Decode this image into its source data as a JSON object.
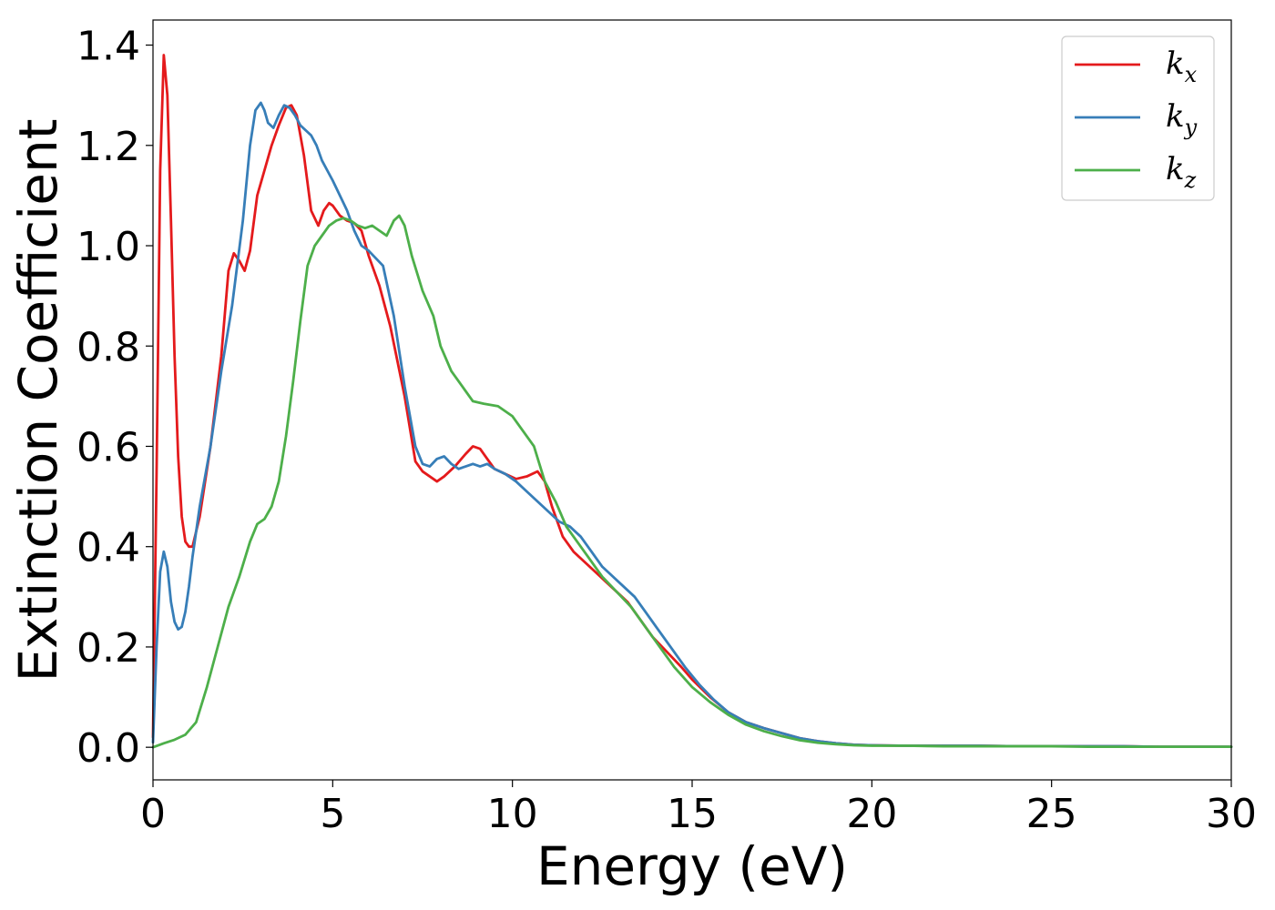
{
  "chart_data": {
    "type": "line",
    "title": "",
    "xlabel": "Energy (eV)",
    "ylabel": "Extinction Coefficient",
    "xlim": [
      0,
      30
    ],
    "ylim": [
      -0.065,
      1.45
    ],
    "xticks": [
      0,
      5,
      10,
      15,
      20,
      25,
      30
    ],
    "xtick_labels": [
      "0",
      "5",
      "10",
      "15",
      "20",
      "25",
      "30"
    ],
    "yticks": [
      0.0,
      0.2,
      0.4,
      0.6,
      0.8,
      1.0,
      1.2,
      1.4
    ],
    "ytick_labels": [
      "0.0",
      "0.2",
      "0.4",
      "0.6",
      "0.8",
      "1.0",
      "1.2",
      "1.4"
    ],
    "grid": false,
    "legend_position": "top-right",
    "series": [
      {
        "name": "k_x",
        "legend_base": "k",
        "legend_sub": "x",
        "color": "#e41a1c",
        "x": [
          0,
          0.1,
          0.2,
          0.3,
          0.4,
          0.5,
          0.6,
          0.7,
          0.8,
          0.9,
          1.0,
          1.1,
          1.3,
          1.6,
          1.9,
          2.1,
          2.25,
          2.4,
          2.55,
          2.7,
          2.9,
          3.1,
          3.3,
          3.5,
          3.7,
          3.85,
          4.0,
          4.2,
          4.4,
          4.6,
          4.75,
          4.9,
          5.0,
          5.2,
          5.4,
          5.6,
          5.8,
          6.0,
          6.3,
          6.6,
          7.0,
          7.3,
          7.5,
          7.7,
          7.9,
          8.1,
          8.4,
          8.7,
          8.9,
          9.1,
          9.3,
          9.5,
          9.8,
          10.1,
          10.4,
          10.7,
          10.9,
          11.1,
          11.4,
          11.7,
          12.0,
          12.3,
          12.6,
          12.9,
          13.2,
          13.5,
          13.9,
          14.3,
          14.7,
          15.0,
          15.5,
          16.0,
          16.5,
          17.0,
          17.5,
          18.0,
          18.5,
          19.0,
          19.5,
          20.0,
          21,
          22,
          23,
          24,
          25,
          26,
          27,
          28,
          29,
          30
        ],
        "y": [
          0.02,
          0.55,
          1.15,
          1.38,
          1.3,
          1.05,
          0.78,
          0.58,
          0.46,
          0.41,
          0.4,
          0.4,
          0.46,
          0.6,
          0.78,
          0.95,
          0.985,
          0.97,
          0.95,
          0.99,
          1.1,
          1.15,
          1.2,
          1.24,
          1.275,
          1.28,
          1.26,
          1.18,
          1.07,
          1.04,
          1.07,
          1.085,
          1.08,
          1.06,
          1.05,
          1.045,
          1.03,
          0.98,
          0.92,
          0.84,
          0.7,
          0.57,
          0.55,
          0.54,
          0.53,
          0.54,
          0.56,
          0.585,
          0.6,
          0.595,
          0.575,
          0.555,
          0.545,
          0.535,
          0.54,
          0.55,
          0.53,
          0.48,
          0.42,
          0.39,
          0.37,
          0.35,
          0.33,
          0.31,
          0.29,
          0.26,
          0.22,
          0.19,
          0.16,
          0.135,
          0.1,
          0.07,
          0.05,
          0.038,
          0.028,
          0.018,
          0.012,
          0.008,
          0.005,
          0.004,
          0.003,
          0.003,
          0.003,
          0.002,
          0.002,
          0.002,
          0.002,
          0.001,
          0.001,
          0.001
        ]
      },
      {
        "name": "k_y",
        "legend_base": "k",
        "legend_sub": "y",
        "color": "#377eb8",
        "x": [
          0,
          0.1,
          0.2,
          0.3,
          0.4,
          0.5,
          0.6,
          0.7,
          0.8,
          0.9,
          1.0,
          1.1,
          1.3,
          1.6,
          1.9,
          2.2,
          2.5,
          2.7,
          2.85,
          3.0,
          3.1,
          3.2,
          3.35,
          3.5,
          3.65,
          3.8,
          3.95,
          4.1,
          4.25,
          4.4,
          4.55,
          4.7,
          4.85,
          5.0,
          5.2,
          5.4,
          5.6,
          5.8,
          6.0,
          6.2,
          6.4,
          6.7,
          7.0,
          7.3,
          7.5,
          7.7,
          7.9,
          8.1,
          8.3,
          8.5,
          8.7,
          8.9,
          9.1,
          9.3,
          9.5,
          9.8,
          10.1,
          10.4,
          10.7,
          11.0,
          11.3,
          11.6,
          11.9,
          12.2,
          12.5,
          12.8,
          13.1,
          13.4,
          13.7,
          14.0,
          14.4,
          14.8,
          15.2,
          15.6,
          16.0,
          16.5,
          17.0,
          17.5,
          18.0,
          18.5,
          19.0,
          19.5,
          20.0,
          21,
          22,
          23,
          24,
          25,
          26,
          27,
          28,
          29,
          30
        ],
        "y": [
          0.01,
          0.2,
          0.35,
          0.39,
          0.36,
          0.29,
          0.25,
          0.235,
          0.24,
          0.27,
          0.32,
          0.38,
          0.48,
          0.6,
          0.75,
          0.88,
          1.05,
          1.2,
          1.27,
          1.285,
          1.27,
          1.245,
          1.235,
          1.26,
          1.28,
          1.275,
          1.26,
          1.24,
          1.23,
          1.22,
          1.2,
          1.17,
          1.15,
          1.13,
          1.1,
          1.07,
          1.03,
          1.0,
          0.99,
          0.975,
          0.96,
          0.86,
          0.72,
          0.6,
          0.565,
          0.56,
          0.575,
          0.58,
          0.565,
          0.555,
          0.56,
          0.565,
          0.56,
          0.565,
          0.555,
          0.545,
          0.53,
          0.51,
          0.49,
          0.47,
          0.45,
          0.44,
          0.42,
          0.39,
          0.36,
          0.34,
          0.32,
          0.3,
          0.27,
          0.24,
          0.2,
          0.16,
          0.125,
          0.095,
          0.07,
          0.05,
          0.038,
          0.028,
          0.018,
          0.012,
          0.008,
          0.005,
          0.004,
          0.003,
          0.003,
          0.003,
          0.002,
          0.002,
          0.002,
          0.002,
          0.001,
          0.001,
          0.001
        ]
      },
      {
        "name": "k_z",
        "legend_base": "k",
        "legend_sub": "z",
        "color": "#4daf4a",
        "x": [
          0,
          0.3,
          0.6,
          0.9,
          1.2,
          1.5,
          1.8,
          2.1,
          2.4,
          2.7,
          2.9,
          3.1,
          3.3,
          3.5,
          3.7,
          3.9,
          4.1,
          4.3,
          4.5,
          4.7,
          4.9,
          5.1,
          5.3,
          5.5,
          5.7,
          5.9,
          6.1,
          6.3,
          6.5,
          6.7,
          6.85,
          7.0,
          7.2,
          7.5,
          7.8,
          8.0,
          8.3,
          8.6,
          8.9,
          9.2,
          9.6,
          10.0,
          10.3,
          10.6,
          10.9,
          11.2,
          11.5,
          11.8,
          12.1,
          12.5,
          12.9,
          13.3,
          13.7,
          14.1,
          14.5,
          15.0,
          15.5,
          16.0,
          16.5,
          17.0,
          17.5,
          18.0,
          18.5,
          19.0,
          19.5,
          20.0,
          21,
          22,
          23,
          24,
          25,
          26,
          27,
          28,
          29,
          30
        ],
        "y": [
          0.0,
          0.008,
          0.015,
          0.025,
          0.05,
          0.12,
          0.2,
          0.28,
          0.34,
          0.41,
          0.445,
          0.455,
          0.48,
          0.53,
          0.62,
          0.73,
          0.85,
          0.96,
          1.0,
          1.02,
          1.04,
          1.05,
          1.055,
          1.05,
          1.04,
          1.035,
          1.04,
          1.03,
          1.02,
          1.05,
          1.06,
          1.04,
          0.98,
          0.91,
          0.86,
          0.8,
          0.75,
          0.72,
          0.69,
          0.685,
          0.68,
          0.66,
          0.63,
          0.6,
          0.53,
          0.49,
          0.44,
          0.41,
          0.38,
          0.34,
          0.31,
          0.28,
          0.24,
          0.2,
          0.16,
          0.12,
          0.09,
          0.065,
          0.045,
          0.032,
          0.022,
          0.014,
          0.009,
          0.006,
          0.004,
          0.003,
          0.003,
          0.002,
          0.002,
          0.002,
          0.002,
          0.001,
          0.001,
          0.001,
          0.001,
          0.001
        ]
      }
    ]
  }
}
